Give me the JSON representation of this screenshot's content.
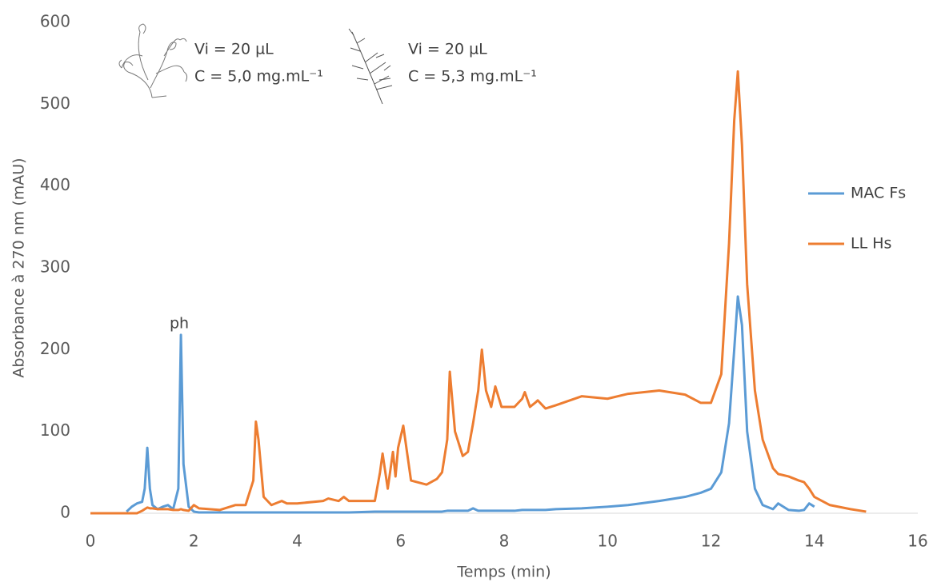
{
  "chart_data": {
    "type": "line",
    "x_label": "Temps (min)",
    "y_label": "Absorbance à 270 nm (mAU)",
    "annotations": [
      "ph",
      "Vi = 20 µL",
      "C = 5,0 mg.mL⁻¹",
      "Vi = 20 µL",
      "C = 5,3 mg.mL⁻¹"
    ],
    "xlim": [
      0,
      16
    ],
    "xticks": [
      0,
      2,
      4,
      6,
      8,
      10,
      12,
      14,
      16
    ],
    "ylim": [
      0,
      600
    ],
    "yticks": [
      0,
      100,
      200,
      300,
      400,
      500,
      600
    ],
    "grid": false,
    "legend": "right",
    "x": [
      0,
      0.5,
      0.7,
      0.8,
      0.9,
      1.0,
      1.05,
      1.1,
      1.15,
      1.2,
      1.3,
      1.4,
      1.5,
      1.6,
      1.7,
      1.75,
      1.8,
      1.9,
      2.0,
      2.1,
      2.5,
      2.8,
      3.0,
      3.15,
      3.2,
      3.25,
      3.35,
      3.5,
      3.7,
      3.8,
      4.0,
      4.5,
      4.6,
      4.8,
      4.9,
      5.0,
      5.5,
      5.6,
      5.65,
      5.75,
      5.85,
      5.9,
      5.95,
      6.05,
      6.2,
      6.5,
      6.7,
      6.8,
      6.9,
      6.95,
      7.05,
      7.2,
      7.3,
      7.4,
      7.5,
      7.57,
      7.65,
      7.75,
      7.83,
      7.95,
      8.2,
      8.35,
      8.4,
      8.5,
      8.6,
      8.65,
      8.8,
      9.0,
      9.5,
      10.0,
      10.4,
      11.0,
      11.5,
      11.8,
      12.0,
      12.2,
      12.35,
      12.45,
      12.52,
      12.6,
      12.7,
      12.85,
      13.0,
      13.2,
      13.3,
      13.5,
      13.7,
      13.8,
      13.9,
      14.0,
      14.3,
      14.7,
      15.0
    ],
    "series": [
      {
        "name": "MAC Fs",
        "color": "#5b9bd5",
        "values": [
          null,
          null,
          2,
          8,
          12,
          14,
          30,
          80,
          30,
          10,
          5,
          8,
          10,
          5,
          30,
          218,
          60,
          8,
          2,
          1,
          1,
          1,
          1,
          1,
          1,
          1,
          1,
          1,
          1,
          1,
          1,
          1,
          1,
          1,
          1,
          1,
          2,
          2,
          2,
          2,
          2,
          2,
          2,
          2,
          2,
          2,
          2,
          2,
          3,
          3,
          3,
          3,
          3,
          6,
          3,
          3,
          3,
          3,
          3,
          3,
          3,
          4,
          4,
          4,
          4,
          4,
          4,
          5,
          6,
          8,
          10,
          15,
          20,
          25,
          30,
          50,
          110,
          200,
          265,
          230,
          100,
          30,
          10,
          5,
          12,
          4,
          3,
          4,
          12,
          8,
          null,
          null,
          null
        ]
      },
      {
        "name": "LL Hs",
        "color": "#ed7d31",
        "values": [
          0,
          0,
          0,
          0,
          0,
          3,
          5,
          7,
          6,
          6,
          5,
          5,
          5,
          4,
          4,
          5,
          4,
          3,
          10,
          6,
          4,
          10,
          10,
          40,
          112,
          90,
          20,
          10,
          15,
          12,
          12,
          15,
          18,
          15,
          20,
          15,
          15,
          50,
          73,
          30,
          75,
          45,
          80,
          107,
          40,
          35,
          42,
          50,
          90,
          173,
          100,
          70,
          75,
          110,
          150,
          200,
          150,
          130,
          155,
          130,
          130,
          140,
          148,
          130,
          135,
          138,
          128,
          132,
          143,
          140,
          146,
          150,
          145,
          135,
          135,
          170,
          330,
          480,
          540,
          450,
          280,
          150,
          90,
          55,
          48,
          45,
          40,
          38,
          30,
          20,
          10,
          5,
          2
        ]
      }
    ]
  }
}
